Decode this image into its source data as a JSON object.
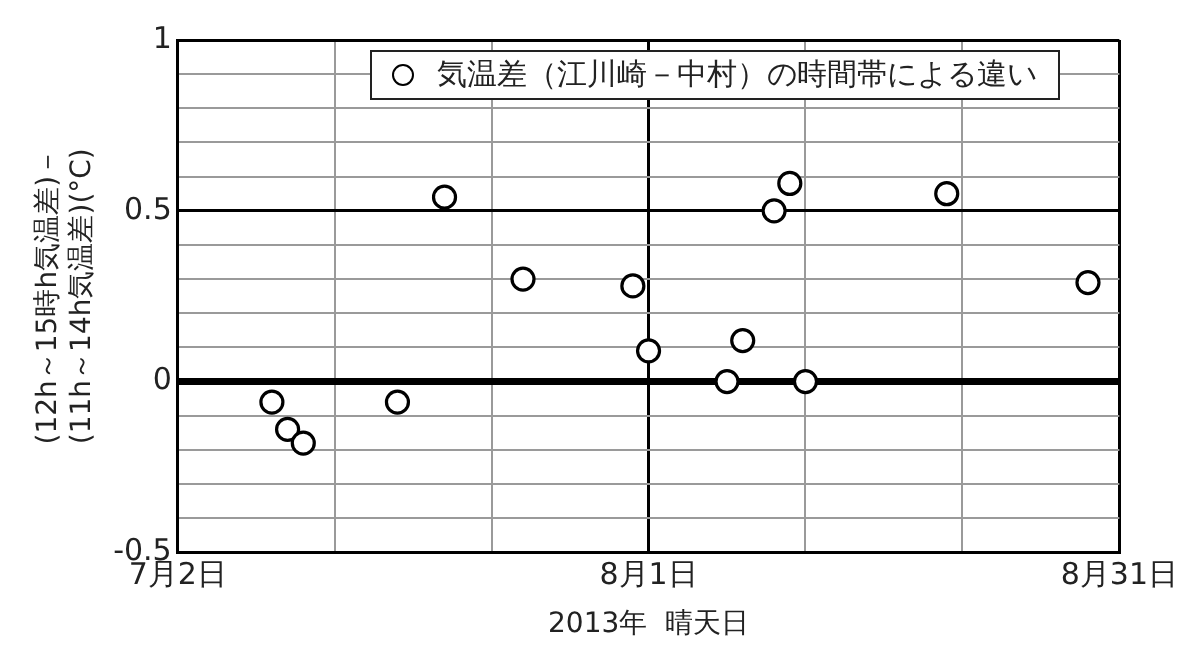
{
  "chart_data": {
    "type": "scatter",
    "xlabel": "2013年  晴天日",
    "ylabel": "(12h～15時h気温差)－\n(11h～14h気温差)(°C)",
    "x": [
      "2013-07-08",
      "2013-07-09",
      "2013-07-10",
      "2013-07-16",
      "2013-07-19",
      "2013-07-24",
      "2013-07-31",
      "2013-08-01",
      "2013-08-06",
      "2013-08-07",
      "2013-08-09",
      "2013-08-10",
      "2013-08-11",
      "2013-08-20",
      "2013-08-29"
    ],
    "series": [
      {
        "name": "気温差（江川崎－中村）の時間帯による違い",
        "color": "#000000",
        "values": [
          -0.06,
          -0.14,
          -0.18,
          -0.06,
          0.54,
          0.3,
          0.28,
          0.09,
          0,
          0.12,
          0.5,
          0.58,
          0,
          0.55,
          0.29
        ]
      }
    ],
    "xlim": [
      "2013-07-02",
      "2013-08-31"
    ],
    "xticks": [
      {
        "value": "2013-07-02",
        "label": "7月2日"
      },
      {
        "value": "2013-07-12",
        "label": null
      },
      {
        "value": "2013-07-22",
        "label": null
      },
      {
        "value": "2013-08-01",
        "label": "8月1日"
      },
      {
        "value": "2013-08-11",
        "label": null
      },
      {
        "value": "2013-08-21",
        "label": null
      },
      {
        "value": "2013-08-31",
        "label": "8月31日"
      }
    ],
    "ylim": [
      -0.5,
      1
    ],
    "yticks": [
      -0.5,
      {
        "value": -0.4,
        "label": null
      },
      {
        "value": -0.3,
        "label": null
      },
      {
        "value": -0.2,
        "label": null
      },
      {
        "value": -0.1,
        "label": null
      },
      0,
      {
        "value": 0.1,
        "label": null
      },
      {
        "value": 0.2,
        "label": null
      },
      {
        "value": 0.3,
        "label": null
      },
      {
        "value": 0.4,
        "label": null
      },
      0.5,
      {
        "value": 0.6,
        "label": null
      },
      {
        "value": 0.7,
        "label": null
      },
      {
        "value": 0.8,
        "label": null
      },
      {
        "value": 0.9,
        "label": null
      },
      1
    ],
    "grid": true,
    "legend": "top right",
    "marker": "circle"
  }
}
